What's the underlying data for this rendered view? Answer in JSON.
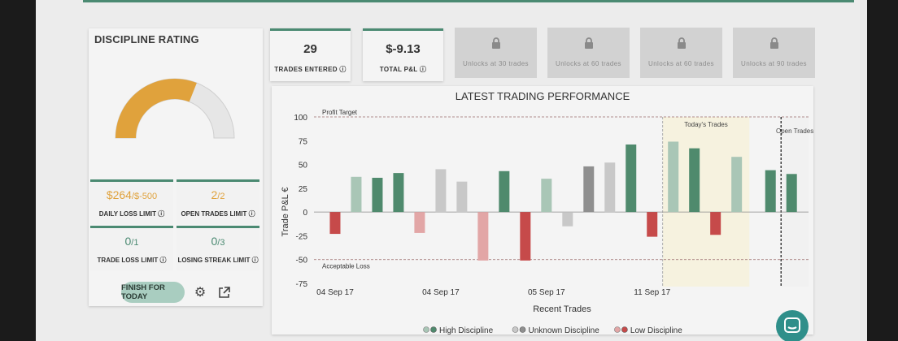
{
  "discipline": {
    "title": "DISCIPLINE RATING",
    "gauge_fraction": 0.62,
    "gauge_color": "#e0a23c",
    "limits": [
      {
        "value_main": "$264",
        "value_sub": "/$-500",
        "label": "DAILY LOSS LIMIT",
        "color": "#e0a23c"
      },
      {
        "value_main": "2",
        "value_sub": "/2",
        "label": "OPEN TRADES LIMIT",
        "color": "#e0a23c"
      },
      {
        "value_main": "0",
        "value_sub": "/1",
        "label": "TRADE LOSS LIMIT",
        "color": "#4b8a72"
      },
      {
        "value_main": "0",
        "value_sub": "/3",
        "label": "LOSING STREAK LIMIT",
        "color": "#4b8a72"
      }
    ],
    "finish_label": "FINISH FOR TODAY"
  },
  "stats": [
    {
      "value": "29",
      "label": "TRADES ENTERED"
    },
    {
      "value": "$-9.13",
      "label": "TOTAL P&L"
    }
  ],
  "locked_tiles": [
    {
      "label": "Unlocks at 30 trades"
    },
    {
      "label": "Unlocks at 60 trades"
    },
    {
      "label": "Unlocks at 60 trades"
    },
    {
      "label": "Unlocks at 90 trades"
    }
  ],
  "chart_data": {
    "type": "bar",
    "title": "LATEST TRADING PERFORMANCE",
    "xlabel": "Recent Trades",
    "ylabel": "Trade P&L €",
    "ylim": [
      -75,
      100
    ],
    "yticks": [
      100,
      75,
      50,
      25,
      0,
      -25,
      -50,
      -75
    ],
    "xticks": [
      {
        "label": "04 Sep 17",
        "index": 0
      },
      {
        "label": "04 Sep 17",
        "index": 5
      },
      {
        "label": "05 Sep 17",
        "index": 10
      },
      {
        "label": "11 Sep 17",
        "index": 15
      }
    ],
    "reference_lines": [
      {
        "label": "Profit Target",
        "value": 100
      },
      {
        "label": "Acceptable Loss",
        "value": -50
      }
    ],
    "zones": [
      {
        "label": "Today's Trades",
        "start_index": 16,
        "end_index": 19
      },
      {
        "label": "Open Trades",
        "start_index": 21,
        "end_index": 22
      }
    ],
    "values": [
      -23,
      37,
      36,
      41,
      -22,
      45,
      32,
      -51,
      43,
      -51,
      35,
      -15,
      48,
      52,
      71,
      -26,
      74,
      67,
      -24,
      58,
      44,
      40
    ],
    "discipline": [
      "low",
      "high",
      "high",
      "high",
      "low",
      "unknown",
      "unknown",
      "low",
      "high",
      "low",
      "high",
      "unknown",
      "unknown",
      "unknown",
      "high",
      "low",
      "high",
      "high",
      "low",
      "high",
      "high",
      "high"
    ],
    "colors": {
      "high": "#4f8a6d",
      "unknown": "#8f8f8f",
      "low": "#c64a4a"
    },
    "legend": [
      {
        "label": "High Discipline",
        "key": "high"
      },
      {
        "label": "Unknown Discipline",
        "key": "unknown"
      },
      {
        "label": "Low Discipline",
        "key": "low"
      }
    ]
  }
}
